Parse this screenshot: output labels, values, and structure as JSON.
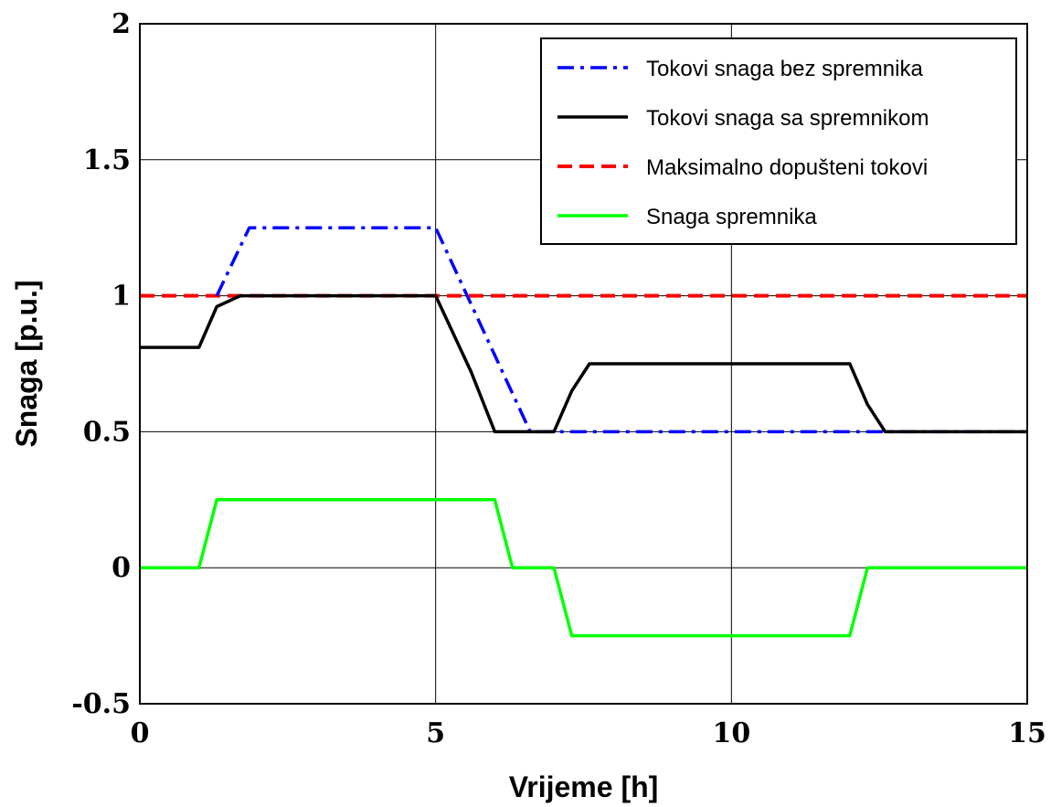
{
  "chart_data": {
    "type": "line",
    "title": "",
    "xlabel": "Vrijeme [h]",
    "ylabel": "Snaga [p.u.]",
    "xlim": [
      0,
      15
    ],
    "ylim": [
      -0.5,
      2
    ],
    "xticks": [
      0,
      5,
      10,
      15
    ],
    "xtick_labels": [
      "0",
      "5",
      "10",
      "15"
    ],
    "yticks": [
      -0.5,
      0,
      0.5,
      1,
      1.5,
      2
    ],
    "ytick_labels": [
      "-0.5",
      "0",
      "0.5",
      "1",
      "1.5",
      "2"
    ],
    "grid": true,
    "legend_position": "top-right",
    "series": [
      {
        "name": "Tokovi snaga bez spremnika",
        "color": "#0000ff",
        "style": "dash-dot",
        "x": [
          1.3,
          1.85,
          5.0,
          6.6,
          15.0
        ],
        "y": [
          1.0,
          1.25,
          1.25,
          0.5,
          0.5
        ]
      },
      {
        "name": "Tokovi snaga sa spremnikom",
        "color": "#000000",
        "style": "solid",
        "x": [
          0,
          1.0,
          1.3,
          1.7,
          5.0,
          5.6,
          6.0,
          7.0,
          7.3,
          7.6,
          12.0,
          12.3,
          12.6,
          15.0
        ],
        "y": [
          0.81,
          0.81,
          0.96,
          1.0,
          1.0,
          0.72,
          0.5,
          0.5,
          0.65,
          0.75,
          0.75,
          0.6,
          0.5,
          0.5
        ]
      },
      {
        "name": "Maksimalno dopušteni tokovi",
        "color": "#ff0000",
        "style": "dashed",
        "x": [
          0,
          15
        ],
        "y": [
          1.0,
          1.0
        ]
      },
      {
        "name": "Snaga spremnika",
        "color": "#00ff00",
        "style": "solid",
        "x": [
          0,
          1.0,
          1.3,
          6.0,
          6.3,
          7.0,
          7.3,
          12.0,
          12.3,
          15.0
        ],
        "y": [
          0,
          0,
          0.25,
          0.25,
          0,
          0,
          -0.25,
          -0.25,
          0,
          0
        ]
      }
    ]
  }
}
